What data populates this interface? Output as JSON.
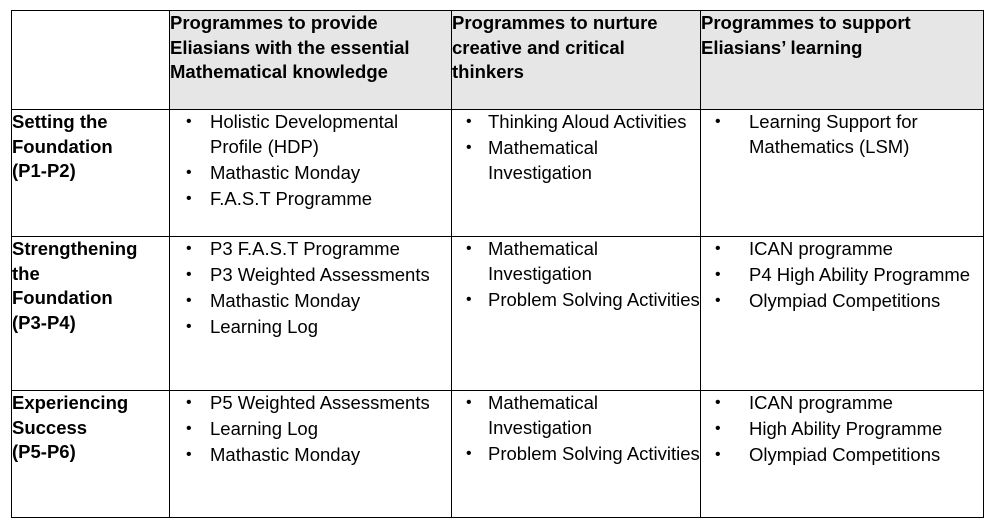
{
  "headers": {
    "col1": "Programmes to provide Eliasians with the essential Mathematical knowledge",
    "col2": "Programmes to nurture creative and critical thinkers",
    "col3": "Programmes to support Eliasians’ learning"
  },
  "rows": [
    {
      "stage": [
        "Setting the",
        "Foundation",
        "(P1-P2)"
      ],
      "col1": [
        "Holistic Developmental Profile (HDP)",
        "Mathastic Monday",
        "F.A.S.T Programme"
      ],
      "col2": [
        "Thinking Aloud Activities",
        "Mathematical Investigation"
      ],
      "col3": [
        "Learning Support for Mathematics (LSM)"
      ]
    },
    {
      "stage": [
        "Strengthening",
        "the",
        "Foundation",
        "(P3-P4)"
      ],
      "col1": [
        "P3 F.A.S.T Programme",
        "P3 Weighted Assessments",
        "Mathastic Monday",
        "Learning Log"
      ],
      "col2": [
        "Mathematical Investigation",
        "Problem Solving Activities"
      ],
      "col3": [
        "ICAN programme",
        "P4 High Ability Programme",
        "Olympiad Competitions"
      ]
    },
    {
      "stage": [
        "Experiencing",
        "Success",
        "(P5-P6)"
      ],
      "col1": [
        "P5 Weighted Assessments",
        "Learning Log",
        "Mathastic Monday"
      ],
      "col2": [
        "Mathematical Investigation",
        "Problem Solving Activities"
      ],
      "col3": [
        "ICAN programme",
        "High Ability Programme",
        "Olympiad Competitions"
      ]
    }
  ],
  "bullet_glyph": "•"
}
